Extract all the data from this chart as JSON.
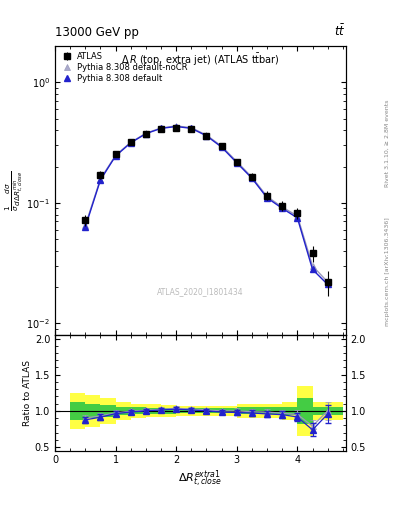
{
  "title_top_left": "13000 GeV pp",
  "title_top_right": "t$\\bar{t}$",
  "right_label_top": "Rivet 3.1.10, ≥ 2.8M events",
  "right_label_bot": "mcplots.cern.ch [arXiv:1306.3436]",
  "watermark": "ATLAS_2020_I1801434",
  "plot_title": "Δ R (top, extra jet) (ATLAS ttbar)",
  "legend_atlas": "ATLAS",
  "legend_py_default": "Pythia 8.308 default",
  "legend_py_nocr": "Pythia 8.308 default-noCR",
  "ylabel_main": "$\\frac{1}{\\sigma}\\frac{d\\sigma}{d\\Delta R_{t,close}^{min}}$",
  "ylabel_ratio": "Ratio to ATLAS",
  "xlabel": "$\\Delta R_{t,close}^{extra1}$",
  "atlas_x": [
    0.5,
    0.75,
    1.0,
    1.25,
    1.5,
    1.75,
    2.0,
    2.25,
    2.5,
    2.75,
    3.0,
    3.25,
    3.5,
    3.75,
    4.0,
    4.25,
    4.5
  ],
  "atlas_y": [
    0.072,
    0.17,
    0.255,
    0.32,
    0.375,
    0.41,
    0.42,
    0.41,
    0.36,
    0.295,
    0.22,
    0.165,
    0.115,
    0.095,
    0.082,
    0.038,
    0.022
  ],
  "atlas_yerr": [
    0.008,
    0.012,
    0.015,
    0.016,
    0.018,
    0.019,
    0.02,
    0.019,
    0.017,
    0.015,
    0.013,
    0.011,
    0.01,
    0.009,
    0.009,
    0.006,
    0.005
  ],
  "py_default_x": [
    0.5,
    0.75,
    1.0,
    1.25,
    1.5,
    1.75,
    2.0,
    2.25,
    2.5,
    2.75,
    3.0,
    3.25,
    3.5,
    3.75,
    4.0,
    4.25,
    4.5
  ],
  "py_default_y": [
    0.063,
    0.155,
    0.245,
    0.315,
    0.375,
    0.415,
    0.43,
    0.415,
    0.36,
    0.29,
    0.215,
    0.16,
    0.11,
    0.09,
    0.075,
    0.028,
    0.021
  ],
  "py_nocr_x": [
    0.5,
    0.75,
    1.0,
    1.25,
    1.5,
    1.75,
    2.0,
    2.25,
    2.5,
    2.75,
    3.0,
    3.25,
    3.5,
    3.75,
    4.0,
    4.25,
    4.5
  ],
  "py_nocr_y": [
    0.065,
    0.158,
    0.248,
    0.318,
    0.378,
    0.418,
    0.435,
    0.42,
    0.365,
    0.295,
    0.22,
    0.163,
    0.113,
    0.092,
    0.078,
    0.03,
    0.022
  ],
  "ratio_py_default": [
    0.875,
    0.912,
    0.961,
    0.984,
    1.0,
    1.012,
    1.024,
    1.012,
    1.0,
    0.983,
    0.977,
    0.97,
    0.957,
    0.947,
    0.915,
    0.737,
    0.955
  ],
  "ratio_py_default_err": [
    0.04,
    0.04,
    0.035,
    0.03,
    0.028,
    0.027,
    0.027,
    0.027,
    0.028,
    0.03,
    0.033,
    0.037,
    0.042,
    0.048,
    0.055,
    0.09,
    0.12
  ],
  "ratio_py_nocr": [
    0.902,
    0.929,
    0.973,
    0.994,
    1.008,
    1.02,
    1.036,
    1.024,
    1.014,
    0.997,
    1.0,
    0.988,
    0.983,
    0.968,
    0.951,
    0.789,
    1.0
  ],
  "ratio_py_nocr_err": [
    0.04,
    0.04,
    0.035,
    0.03,
    0.028,
    0.027,
    0.027,
    0.027,
    0.028,
    0.03,
    0.033,
    0.037,
    0.042,
    0.048,
    0.055,
    0.09,
    0.12
  ],
  "band_yellow_edges": [
    0.25,
    0.5,
    0.75,
    1.0,
    1.25,
    1.5,
    1.75,
    2.0,
    2.25,
    2.5,
    2.75,
    3.0,
    3.25,
    3.5,
    3.75,
    4.0,
    4.25,
    4.5,
    4.75
  ],
  "band_yellow_lo": [
    0.75,
    0.78,
    0.82,
    0.88,
    0.9,
    0.91,
    0.92,
    0.93,
    0.93,
    0.93,
    0.93,
    0.9,
    0.9,
    0.9,
    0.88,
    0.65,
    0.88,
    0.88,
    0.88
  ],
  "band_yellow_hi": [
    1.25,
    1.22,
    1.18,
    1.12,
    1.1,
    1.09,
    1.08,
    1.07,
    1.07,
    1.07,
    1.07,
    1.1,
    1.1,
    1.1,
    1.12,
    1.35,
    1.12,
    1.12,
    1.12
  ],
  "band_green_edges": [
    0.25,
    0.5,
    0.75,
    1.0,
    1.25,
    1.5,
    1.75,
    2.0,
    2.25,
    2.5,
    2.75,
    3.0,
    3.25,
    3.5,
    3.75,
    4.0,
    4.25,
    4.5,
    4.75
  ],
  "band_green_lo": [
    0.88,
    0.9,
    0.92,
    0.94,
    0.95,
    0.955,
    0.96,
    0.965,
    0.965,
    0.965,
    0.965,
    0.95,
    0.95,
    0.95,
    0.94,
    0.82,
    0.94,
    0.94,
    0.94
  ],
  "band_green_hi": [
    1.12,
    1.1,
    1.08,
    1.06,
    1.05,
    1.045,
    1.04,
    1.035,
    1.035,
    1.035,
    1.035,
    1.05,
    1.05,
    1.05,
    1.06,
    1.18,
    1.06,
    1.06,
    1.06
  ],
  "xlim": [
    0,
    4.8
  ],
  "ylim_main_log": [
    0.008,
    2.0
  ],
  "ylim_ratio": [
    0.45,
    2.05
  ],
  "color_atlas": "#000000",
  "color_py_default": "#2222cc",
  "color_py_nocr": "#9999bb",
  "color_yellow": "#ffff44",
  "color_green": "#44cc44",
  "marker_atlas": "s",
  "marker_py_default": "^",
  "marker_py_nocr": "^",
  "ms_main": 4,
  "ms_ratio": 4
}
